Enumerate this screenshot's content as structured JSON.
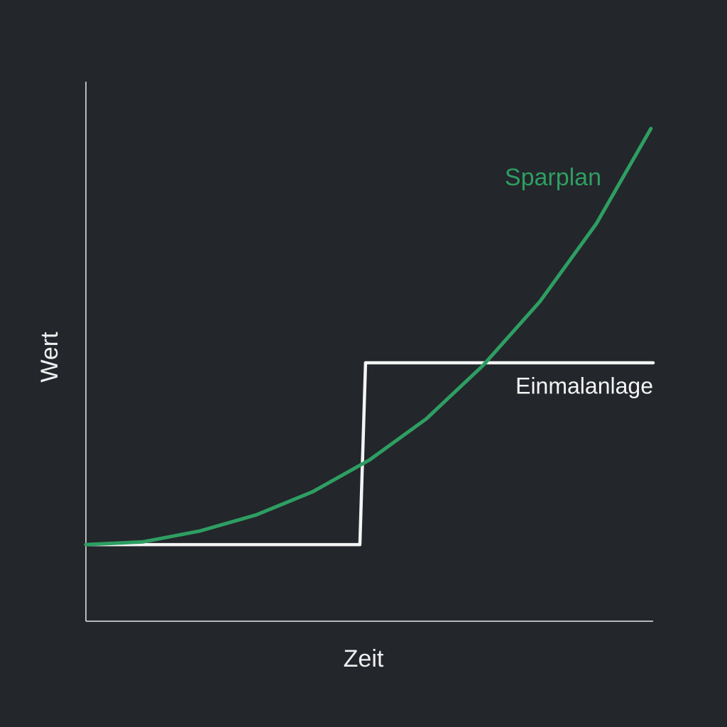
{
  "chart_data": {
    "type": "line",
    "x_label": "Zeit",
    "y_label": "Wert",
    "xlim": [
      0,
      100
    ],
    "ylim": [
      0,
      100
    ],
    "series": [
      {
        "name": "Sparplan",
        "color": "#2e9e62",
        "x": [
          0,
          10,
          20,
          30,
          40,
          50,
          60,
          70,
          80,
          90,
          99.6
        ],
        "values": [
          14.2,
          14.7,
          16.7,
          19.7,
          24,
          29.9,
          37.5,
          47.4,
          59.2,
          73.7,
          91.3
        ]
      },
      {
        "name": "Einmalanlage",
        "color": "#f4f4f4",
        "x": [
          0,
          48.3,
          49.3,
          100
        ],
        "values": [
          14.2,
          14.2,
          47.9,
          47.9
        ]
      }
    ]
  }
}
